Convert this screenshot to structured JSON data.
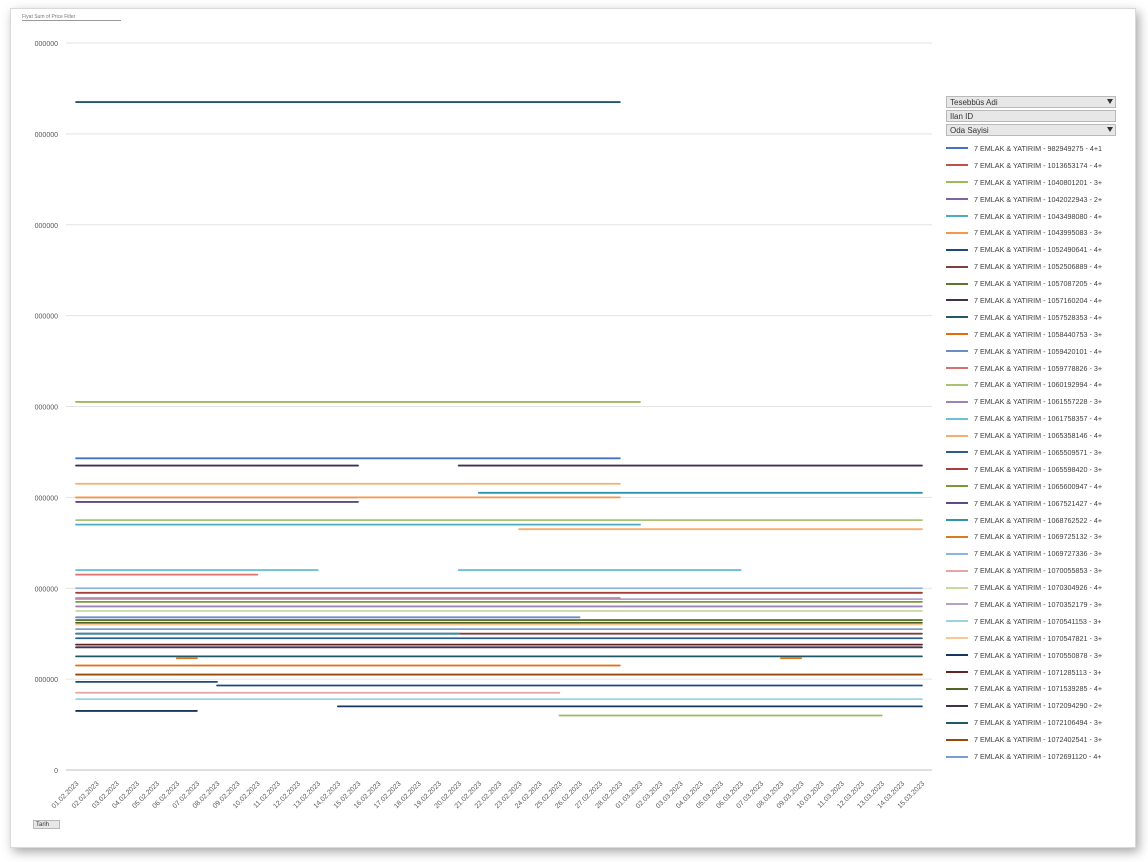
{
  "header": {
    "title": "Fiyat Sum of Price Filter"
  },
  "filters": {
    "tesebbus": "Tesebbüs Adi",
    "ilan": "Ilan ID",
    "oda": "Oda Sayisi"
  },
  "axis_button": {
    "label": "Tarih"
  },
  "chart_data": {
    "type": "line",
    "x": [
      "01.02.2023",
      "02.02.2023",
      "03.02.2023",
      "04.02.2023",
      "05.02.2023",
      "06.02.2023",
      "07.02.2023",
      "08.02.2023",
      "09.02.2023",
      "10.02.2023",
      "11.02.2023",
      "12.02.2023",
      "13.02.2023",
      "14.02.2023",
      "15.02.2023",
      "16.02.2023",
      "17.02.2023",
      "18.02.2023",
      "19.02.2023",
      "20.02.2023",
      "21.02.2023",
      "22.02.2023",
      "23.02.2023",
      "24.02.2023",
      "25.02.2023",
      "26.02.2023",
      "27.02.2023",
      "28.02.2023",
      "01.03.2023",
      "02.03.2023",
      "03.03.2023",
      "04.03.2023",
      "05.03.2023",
      "06.03.2023",
      "07.03.2023",
      "08.03.2023",
      "09.03.2023",
      "10.03.2023",
      "11.03.2023",
      "12.03.2023",
      "13.03.2023",
      "14.03.2023",
      "15.03.2023"
    ],
    "yticks": [
      "0",
      "000000",
      "000000",
      "000000",
      "000000",
      "000000",
      "000000",
      "000000",
      "000000"
    ],
    "ylim": [
      0,
      8
    ],
    "legend_position": "right",
    "series": [
      {
        "name": "7 EMLAK & YATIRIM - 982949275 - 4+1",
        "color": "#4472C4",
        "segments": [
          [
            0,
            27,
            3.43
          ]
        ]
      },
      {
        "name": "7 EMLAK & YATIRIM - 1013653174 - 4+",
        "color": "#C0504D",
        "segments": [
          [
            0,
            27,
            1.89
          ]
        ]
      },
      {
        "name": "7 EMLAK & YATIRIM - 1040801201 - 3+",
        "color": "#9BBB59",
        "segments": [
          [
            0,
            28,
            4.05
          ],
          [
            24,
            40,
            0.6
          ]
        ]
      },
      {
        "name": "7 EMLAK & YATIRIM - 1042022943 - 2+",
        "color": "#8064A2",
        "segments": [
          [
            0,
            14,
            3.0
          ]
        ]
      },
      {
        "name": "7 EMLAK & YATIRIM - 1043498080 - 4+",
        "color": "#4BACC6",
        "segments": [
          [
            0,
            28,
            2.7
          ]
        ]
      },
      {
        "name": "7 EMLAK & YATIRIM - 1043995083 - 3+",
        "color": "#F79646",
        "segments": [
          [
            0,
            27,
            3.0
          ],
          [
            30,
            42,
            1.95
          ]
        ]
      },
      {
        "name": "7 EMLAK & YATIRIM - 1052490641 - 4+",
        "color": "#1F497D",
        "segments": [
          [
            0,
            7,
            0.97
          ],
          [
            7,
            42,
            0.93
          ]
        ]
      },
      {
        "name": "7 EMLAK & YATIRIM - 1052506889 - 4+",
        "color": "#7F3F3F",
        "segments": [
          [
            0,
            42,
            1.5
          ]
        ]
      },
      {
        "name": "7 EMLAK & YATIRIM - 1057087205 - 4+",
        "color": "#5F7530",
        "segments": [
          [
            0,
            42,
            1.65
          ]
        ]
      },
      {
        "name": "7 EMLAK & YATIRIM - 1057160204 - 4+",
        "color": "#403151",
        "segments": [
          [
            0,
            14,
            3.35
          ],
          [
            19,
            42,
            3.35
          ]
        ]
      },
      {
        "name": "7 EMLAK & YATIRIM - 1057528353 - 4+",
        "color": "#215968",
        "segments": [
          [
            0,
            27,
            7.35
          ]
        ]
      },
      {
        "name": "7 EMLAK & YATIRIM - 1058440753 - 3+",
        "color": "#E46C0A",
        "segments": [
          [
            0,
            27,
            1.15
          ]
        ]
      },
      {
        "name": "7 EMLAK & YATIRIM - 1059420101 - 4+",
        "color": "#6A8CC7",
        "segments": [
          [
            0,
            25,
            1.68
          ]
        ]
      },
      {
        "name": "7 EMLAK & YATIRIM - 1059778826 - 3+",
        "color": "#D9726F",
        "segments": [
          [
            0,
            9,
            2.15
          ]
        ]
      },
      {
        "name": "7 EMLAK & YATIRIM - 1060192994 - 4+",
        "color": "#A9C46F",
        "segments": [
          [
            0,
            42,
            2.75
          ]
        ]
      },
      {
        "name": "7 EMLAK & YATIRIM - 1061557228 - 3+",
        "color": "#9A84B8",
        "segments": [
          [
            0,
            42,
            1.8
          ]
        ]
      },
      {
        "name": "7 EMLAK & YATIRIM - 1061758357 - 4+",
        "color": "#6EC0D6",
        "segments": [
          [
            0,
            12,
            2.2
          ],
          [
            19,
            33,
            2.2
          ]
        ]
      },
      {
        "name": "7 EMLAK & YATIRIM - 1065358146 - 4+",
        "color": "#F5AE6E",
        "segments": [
          [
            0,
            27,
            3.15
          ],
          [
            22,
            42,
            2.65
          ]
        ]
      },
      {
        "name": "7 EMLAK & YATIRIM - 1065509571 - 3+",
        "color": "#2C5F8E",
        "segments": [
          [
            0,
            42,
            1.45
          ]
        ]
      },
      {
        "name": "7 EMLAK & YATIRIM - 1065598420 - 3+",
        "color": "#A83E3B",
        "segments": [
          [
            0,
            42,
            1.95
          ]
        ]
      },
      {
        "name": "7 EMLAK & YATIRIM - 1065600947 - 4+",
        "color": "#7A9A3A",
        "segments": [
          [
            0,
            42,
            1.85
          ]
        ]
      },
      {
        "name": "7 EMLAK & YATIRIM - 1067521427 - 4+",
        "color": "#5E4A82",
        "segments": [
          [
            0,
            14,
            2.95
          ]
        ]
      },
      {
        "name": "7 EMLAK & YATIRIM - 1068762522 - 4+",
        "color": "#2E94AD",
        "segments": [
          [
            0,
            19,
            1.5
          ],
          [
            20,
            42,
            3.05
          ]
        ]
      },
      {
        "name": "7 EMLAK & YATIRIM - 1069725132 - 3+",
        "color": "#D97B1E",
        "segments": [
          [
            5,
            6,
            1.23
          ],
          [
            35,
            36,
            1.23
          ]
        ]
      },
      {
        "name": "7 EMLAK & YATIRIM - 1069727336 - 3+",
        "color": "#8DB3E2",
        "segments": [
          [
            0,
            42,
            2.0
          ]
        ]
      },
      {
        "name": "7 EMLAK & YATIRIM - 1070055853 - 3+",
        "color": "#E6A5A3",
        "segments": [
          [
            0,
            24,
            0.85
          ]
        ]
      },
      {
        "name": "7 EMLAK & YATIRIM - 1070304926 - 4+",
        "color": "#C8DA9E",
        "segments": [
          [
            0,
            42,
            1.75
          ]
        ]
      },
      {
        "name": "7 EMLAK & YATIRIM - 1070352179 - 3+",
        "color": "#B2A2CA",
        "segments": [
          [
            0,
            42,
            1.88
          ]
        ]
      },
      {
        "name": "7 EMLAK & YATIRIM - 1070541153 - 3+",
        "color": "#9BD3E2",
        "segments": [
          [
            0,
            42,
            0.78
          ]
        ]
      },
      {
        "name": "7 EMLAK & YATIRIM - 1070547821 - 3+",
        "color": "#FAC896",
        "segments": [
          [
            0,
            42,
            1.6
          ]
        ]
      },
      {
        "name": "7 EMLAK & YATIRIM - 1070550878 - 3+",
        "color": "#17375E",
        "segments": [
          [
            0,
            6,
            0.65
          ],
          [
            13,
            42,
            0.7
          ]
        ]
      },
      {
        "name": "7 EMLAK & YATIRIM - 1071285113 - 3+",
        "color": "#632523",
        "segments": [
          [
            0,
            42,
            1.38
          ]
        ]
      },
      {
        "name": "7 EMLAK & YATIRIM - 1071539285 - 4+",
        "color": "#4F6228",
        "segments": [
          [
            0,
            42,
            1.62
          ]
        ]
      },
      {
        "name": "7 EMLAK & YATIRIM - 1072094290 - 2+",
        "color": "#3F3151",
        "segments": [
          [
            0,
            42,
            1.35
          ]
        ]
      },
      {
        "name": "7 EMLAK & YATIRIM - 1072106494 - 3+",
        "color": "#205867",
        "segments": [
          [
            0,
            42,
            1.25
          ]
        ]
      },
      {
        "name": "7 EMLAK & YATIRIM - 1072402541 - 3+",
        "color": "#984807",
        "segments": [
          [
            0,
            42,
            1.05
          ]
        ]
      },
      {
        "name": "7 EMLAK & YATIRIM - 1072691120 - 4+",
        "color": "#7A9CD0",
        "segments": [
          [
            0,
            42,
            1.55
          ]
        ]
      }
    ]
  }
}
